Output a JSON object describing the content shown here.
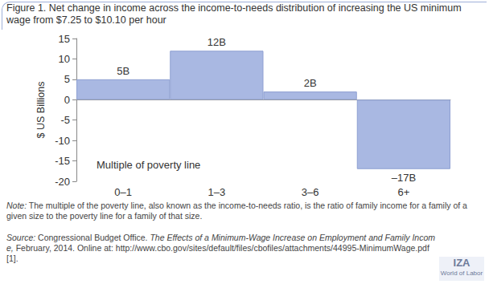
{
  "chart_data": {
    "type": "bar",
    "title": "Figure 1. Net change in income across the income-to-needs distribution of increasing the US minimum wage from $7.25 to $10.10 per hour",
    "categories": [
      "0–1",
      "1–3",
      "3–6",
      "6+"
    ],
    "values": [
      5,
      12,
      2,
      -17
    ],
    "value_labels": [
      "5B",
      "12B",
      "2B",
      "–17B"
    ],
    "data_labels": true,
    "color": "#a9b8e2",
    "ylabel": "$ US Billions",
    "xlabel": "Multiple of poverty line",
    "ylim": [
      -20,
      15
    ],
    "yticks": [
      -20,
      -15,
      -10,
      -5,
      0,
      5,
      10,
      15
    ],
    "grid": false,
    "note_label": "Note:",
    "note": "The multiple of the poverty line, also known as the income-to-needs ratio, is the ratio of family income for a family of a given size to the poverty line for a family of that size.",
    "source_label": "Source:",
    "source": "Congressional Budget Office.",
    "source_title": "The Effects of a Minimum-Wage Increase on Employment and Family Income,",
    "source_details": "February, 2014. Online at: http://www.cbo.gov/sites/default/files/cbofiles/attachments/44995-MinimumWage.pdf [1].",
    "logo": [
      "IZA",
      "World of Labor"
    ]
  }
}
